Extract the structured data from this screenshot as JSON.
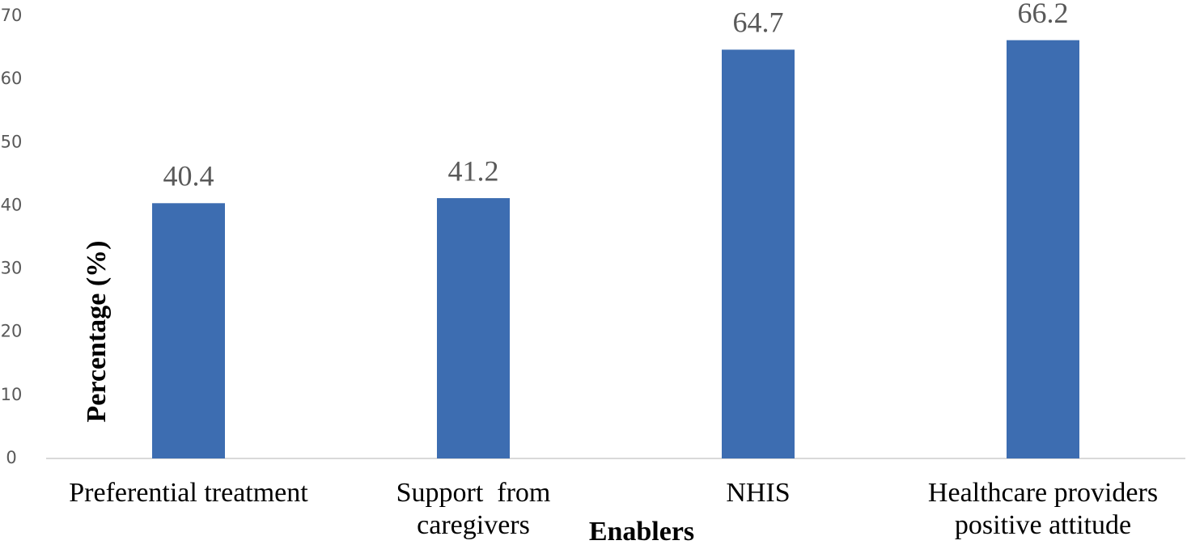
{
  "chart_data": {
    "type": "bar",
    "categories": [
      "Preferential treatment",
      "Support  from caregivers",
      "NHIS",
      "Healthcare providers positive attitude"
    ],
    "values": [
      40.4,
      41.2,
      64.7,
      66.2
    ],
    "color": "#3d6db1",
    "xlabel": "Enablers",
    "ylabel": "Percentage (%)",
    "ylim": [
      0,
      70
    ],
    "yticks": [
      0,
      10,
      20,
      30,
      40,
      50,
      60,
      70
    ],
    "grid": false
  }
}
